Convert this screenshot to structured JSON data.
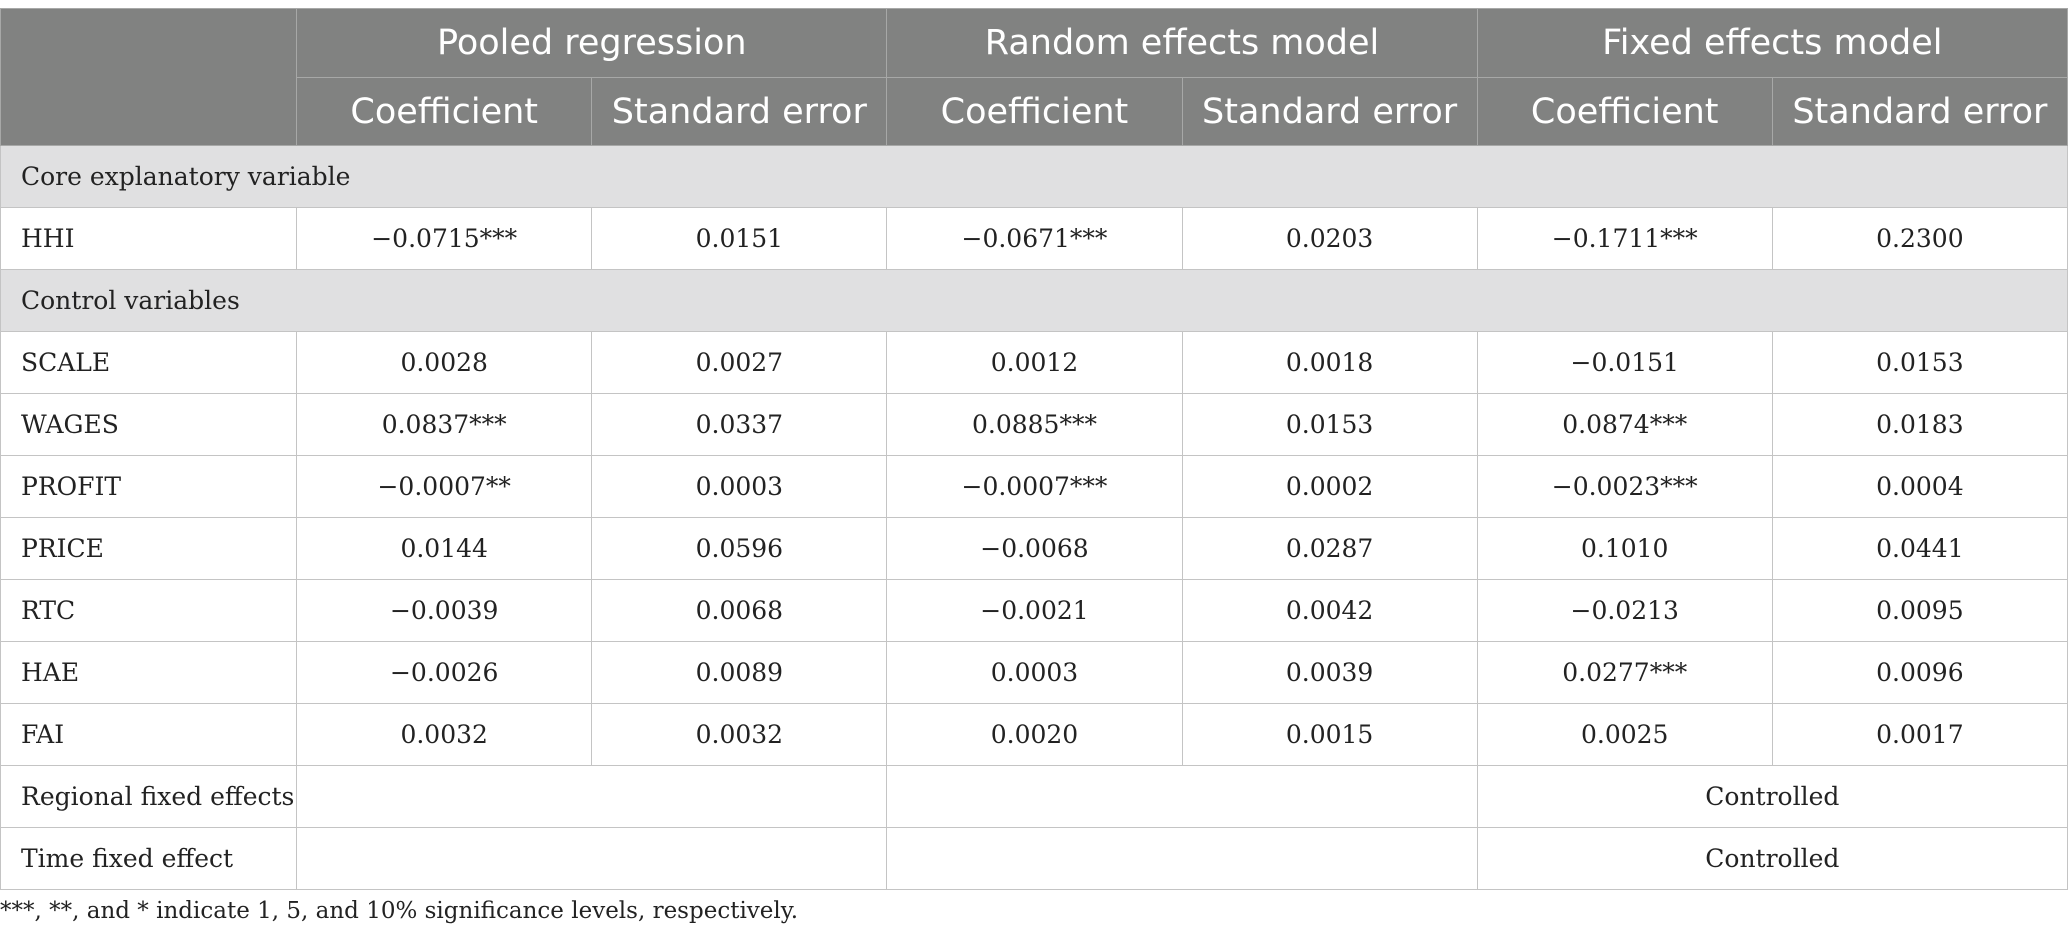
{
  "header": {
    "groups": [
      "Pooled regression",
      "Random effects model",
      "Fixed effects model"
    ],
    "subcolumns": [
      "Coefficient",
      "Standard error",
      "Coefficient",
      "Standard error",
      "Coefficient",
      "Standard error"
    ]
  },
  "sections": {
    "core": "Core explanatory variable",
    "control": "Control variables"
  },
  "rows": {
    "hhi": {
      "label": "HHI",
      "values": [
        "−0.0715***",
        "0.0151",
        "−0.0671***",
        "0.0203",
        "−0.1711***",
        "0.2300"
      ]
    },
    "controls": [
      {
        "label": "SCALE",
        "values": [
          "0.0028",
          "0.0027",
          "0.0012",
          "0.0018",
          "−0.0151",
          "0.0153"
        ]
      },
      {
        "label": "WAGES",
        "values": [
          "0.0837***",
          "0.0337",
          "0.0885***",
          "0.0153",
          "0.0874***",
          "0.0183"
        ]
      },
      {
        "label": "PROFIT",
        "values": [
          "−0.0007**",
          "0.0003",
          "−0.0007***",
          "0.0002",
          "−0.0023***",
          "0.0004"
        ]
      },
      {
        "label": "PRICE",
        "values": [
          "0.0144",
          "0.0596",
          "−0.0068",
          "0.0287",
          "0.1010",
          "0.0441"
        ]
      },
      {
        "label": "RTC",
        "values": [
          "−0.0039",
          "0.0068",
          "−0.0021",
          "0.0042",
          "−0.0213",
          "0.0095"
        ]
      },
      {
        "label": "HAE",
        "values": [
          "−0.0026",
          "0.0089",
          "0.0003",
          "0.0039",
          "0.0277***",
          "0.0096"
        ]
      },
      {
        "label": "FAI",
        "values": [
          "0.0032",
          "0.0032",
          "0.0020",
          "0.0015",
          "0.0025",
          "0.0017"
        ]
      }
    ],
    "effects": [
      {
        "label": "Regional fixed effects",
        "pooled": "",
        "random": "",
        "fixed": "Controlled"
      },
      {
        "label": "Time fixed effect",
        "pooled": "",
        "random": "",
        "fixed": "Controlled"
      }
    ]
  },
  "footnote": "***, **, and * indicate 1, 5, and 10% significance levels, respectively."
}
